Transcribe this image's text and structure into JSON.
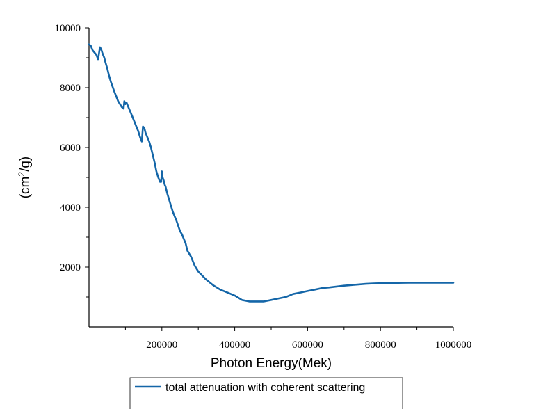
{
  "chart_data": {
    "type": "line",
    "title": "",
    "xlabel": "Photon Energy(Mek)",
    "ylabel_prefix": "(cm",
    "ylabel_sup": "2",
    "ylabel_suffix": "/g)",
    "xlim": [
      0,
      1000000
    ],
    "ylim": [
      0,
      10000
    ],
    "x_ticks": [
      200000,
      400000,
      600000,
      800000,
      1000000
    ],
    "x_tick_labels": [
      "200000",
      "400000",
      "600000",
      "800000",
      "1000000"
    ],
    "y_ticks": [
      2000,
      4000,
      6000,
      8000,
      10000
    ],
    "y_tick_labels": [
      "2000",
      "4000",
      "6000",
      "8000",
      "10000"
    ],
    "grid": false,
    "legend_position": "bottom-center",
    "series": [
      {
        "name": "total attenuation with coherent scattering",
        "color": "#1466a8",
        "x": [
          0,
          5000,
          10000,
          20000,
          25000,
          27000,
          30000,
          33000,
          37000,
          42000,
          45000,
          50000,
          55000,
          60000,
          70000,
          80000,
          90000,
          95000,
          97000,
          100000,
          103000,
          108000,
          115000,
          120000,
          125000,
          130000,
          135000,
          140000,
          143000,
          145000,
          148000,
          152000,
          155000,
          160000,
          165000,
          170000,
          175000,
          180000,
          185000,
          190000,
          195000,
          198000,
          200000,
          202000,
          205000,
          208000,
          210000,
          215000,
          220000,
          225000,
          230000,
          240000,
          250000,
          255000,
          260000,
          265000,
          270000,
          280000,
          290000,
          300000,
          320000,
          340000,
          360000,
          380000,
          400000,
          420000,
          440000,
          460000,
          480000,
          500000,
          520000,
          540000,
          550000,
          560000,
          580000,
          600000,
          620000,
          640000,
          660000,
          680000,
          700000,
          720000,
          740000,
          760000,
          780000,
          800000,
          820000,
          840000,
          860000,
          880000,
          900000,
          950000,
          1000000
        ],
        "values": [
          9450,
          9400,
          9250,
          9100,
          8950,
          9100,
          9350,
          9300,
          9150,
          9000,
          8850,
          8650,
          8400,
          8200,
          7850,
          7550,
          7350,
          7300,
          7550,
          7450,
          7500,
          7350,
          7150,
          7000,
          6850,
          6700,
          6550,
          6350,
          6250,
          6200,
          6700,
          6650,
          6500,
          6350,
          6200,
          6000,
          5750,
          5500,
          5200,
          5000,
          4850,
          4850,
          5200,
          5000,
          4900,
          4750,
          4700,
          4450,
          4250,
          4050,
          3850,
          3550,
          3200,
          3100,
          2950,
          2800,
          2550,
          2350,
          2050,
          1850,
          1600,
          1400,
          1250,
          1150,
          1050,
          900,
          850,
          850,
          850,
          900,
          950,
          1000,
          1050,
          1100,
          1150,
          1200,
          1250,
          1300,
          1320,
          1350,
          1380,
          1400,
          1420,
          1440,
          1450,
          1460,
          1470,
          1470,
          1475,
          1480,
          1480,
          1480,
          1480
        ]
      }
    ]
  }
}
